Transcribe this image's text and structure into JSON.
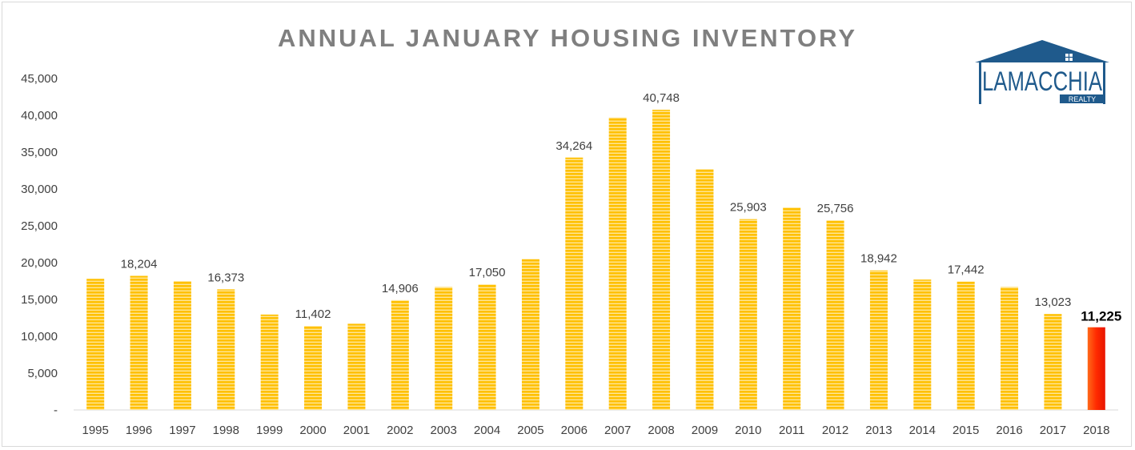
{
  "chart_data": {
    "type": "bar",
    "title": "ANNUAL JANUARY HOUSING INVENTORY",
    "xlabel": "",
    "ylabel": "",
    "ylim": [
      0,
      45000
    ],
    "y_ticks": [
      "-",
      "5,000",
      "10,000",
      "15,000",
      "20,000",
      "25,000",
      "30,000",
      "35,000",
      "40,000",
      "45,000"
    ],
    "grid": false,
    "categories": [
      "1995",
      "1996",
      "1997",
      "1998",
      "1999",
      "2000",
      "2001",
      "2002",
      "2003",
      "2004",
      "2005",
      "2006",
      "2007",
      "2008",
      "2009",
      "2010",
      "2011",
      "2012",
      "2013",
      "2014",
      "2015",
      "2016",
      "2017",
      "2018"
    ],
    "values": [
      17800,
      18204,
      17500,
      16373,
      12950,
      11402,
      11700,
      14906,
      16700,
      17050,
      20500,
      34264,
      39700,
      40748,
      32700,
      25903,
      27500,
      25756,
      18942,
      17700,
      17442,
      16700,
      13023,
      11225
    ],
    "data_labels": [
      "",
      "18,204",
      "",
      "16,373",
      "",
      "11,402",
      "",
      "14,906",
      "",
      "17,050",
      "",
      "34,264",
      "",
      "40,748",
      "",
      "25,903",
      "",
      "25,756",
      "18,942",
      "",
      "17,442",
      "",
      "13,023",
      "11,225"
    ],
    "highlight_index": 23,
    "colors": {
      "bar": "#ffc000",
      "bar_stripe": "#ffe699",
      "highlight": "#ff2a00",
      "highlight_dark": "#e81500"
    }
  },
  "logo": {
    "name": "LAMACCHIA",
    "sub": "REALTY",
    "color": "#1f5a8c"
  }
}
